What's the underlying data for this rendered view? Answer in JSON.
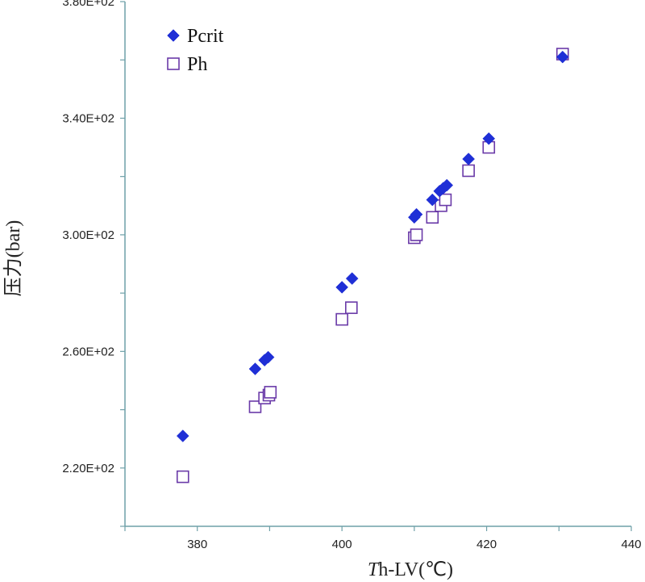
{
  "chart_data": {
    "type": "scatter",
    "title": "",
    "xlabel_italic": "T",
    "xlabel_rest": "h-LV(℃)",
    "ylabel": "压力(bar)",
    "xlim": [
      370,
      440
    ],
    "ylim": [
      200,
      380
    ],
    "x_ticks": [
      380,
      400,
      420,
      440
    ],
    "x_tick_labels": [
      "380",
      "400",
      "420",
      "440"
    ],
    "y_ticks": [
      220,
      260,
      300,
      340,
      380
    ],
    "y_tick_labels": [
      "2.20E+02",
      "2.60E+02",
      "3.00E+02",
      "3.40E+02",
      "3.80E+02"
    ],
    "grid": false,
    "legend_position": "top-left",
    "series": [
      {
        "name": "Pcrit",
        "marker": "diamond-filled",
        "color": "#1f2fd6",
        "points": [
          [
            378,
            231
          ],
          [
            388,
            254
          ],
          [
            389.3,
            257
          ],
          [
            389.8,
            258
          ],
          [
            400,
            282
          ],
          [
            401.4,
            285
          ],
          [
            410,
            306
          ],
          [
            410.3,
            307
          ],
          [
            412.5,
            312
          ],
          [
            413.5,
            315
          ],
          [
            414,
            316
          ],
          [
            414.5,
            317
          ],
          [
            417.5,
            326
          ],
          [
            420.3,
            333
          ],
          [
            430.5,
            361
          ]
        ]
      },
      {
        "name": "Ph",
        "marker": "square-open",
        "color": "#6a3aa8",
        "points": [
          [
            378,
            217
          ],
          [
            388,
            241
          ],
          [
            389.3,
            244
          ],
          [
            389.9,
            245
          ],
          [
            390.1,
            246
          ],
          [
            400,
            271
          ],
          [
            401.3,
            275
          ],
          [
            410,
            299
          ],
          [
            410.3,
            300
          ],
          [
            412.5,
            306
          ],
          [
            413.7,
            310
          ],
          [
            414.3,
            312
          ],
          [
            417.5,
            322
          ],
          [
            420.3,
            330
          ],
          [
            430.5,
            362
          ]
        ]
      }
    ]
  }
}
